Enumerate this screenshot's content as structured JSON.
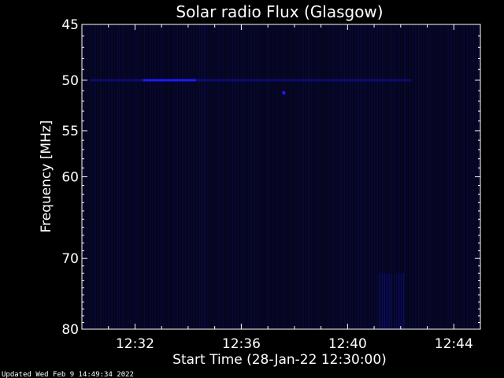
{
  "chart_data": {
    "type": "heatmap",
    "title": "Solar radio Flux (Glasgow)",
    "xlabel": "Start Time (28-Jan-22 12:30:00)",
    "ylabel": "Frequency [MHz]",
    "x_ticks": [
      "12:32",
      "12:36",
      "12:40",
      "12:44"
    ],
    "x_tick_minutes": [
      2,
      6,
      10,
      14
    ],
    "xlim_minutes": [
      0,
      15
    ],
    "y_ticks": [
      45,
      50,
      55,
      60,
      70,
      80
    ],
    "y_scale": "log",
    "ylim": [
      45,
      80
    ],
    "colors": {
      "background": "#000000",
      "plot_background": "#05051a",
      "signal": "#1a1aff",
      "axes": "#ffffff"
    },
    "features": [
      {
        "kind": "horizontal_line",
        "freq_mhz": 50,
        "from_min": 0.3,
        "to_min": 12.4,
        "intensity": 0.35
      },
      {
        "kind": "horizontal_line",
        "freq_mhz": 50,
        "from_min": 2.3,
        "to_min": 4.3,
        "intensity": 1.0
      },
      {
        "kind": "dot",
        "freq_mhz": 51.2,
        "at_min": 7.6,
        "intensity": 1.0
      },
      {
        "kind": "vertical_band",
        "freq_mhz_from": 72,
        "freq_mhz_to": 80,
        "from_min": 11.2,
        "to_min": 12.1,
        "intensity": 0.45
      }
    ]
  },
  "footer": {
    "updated": "Updated Wed Feb  9 14:49:34 2022"
  }
}
